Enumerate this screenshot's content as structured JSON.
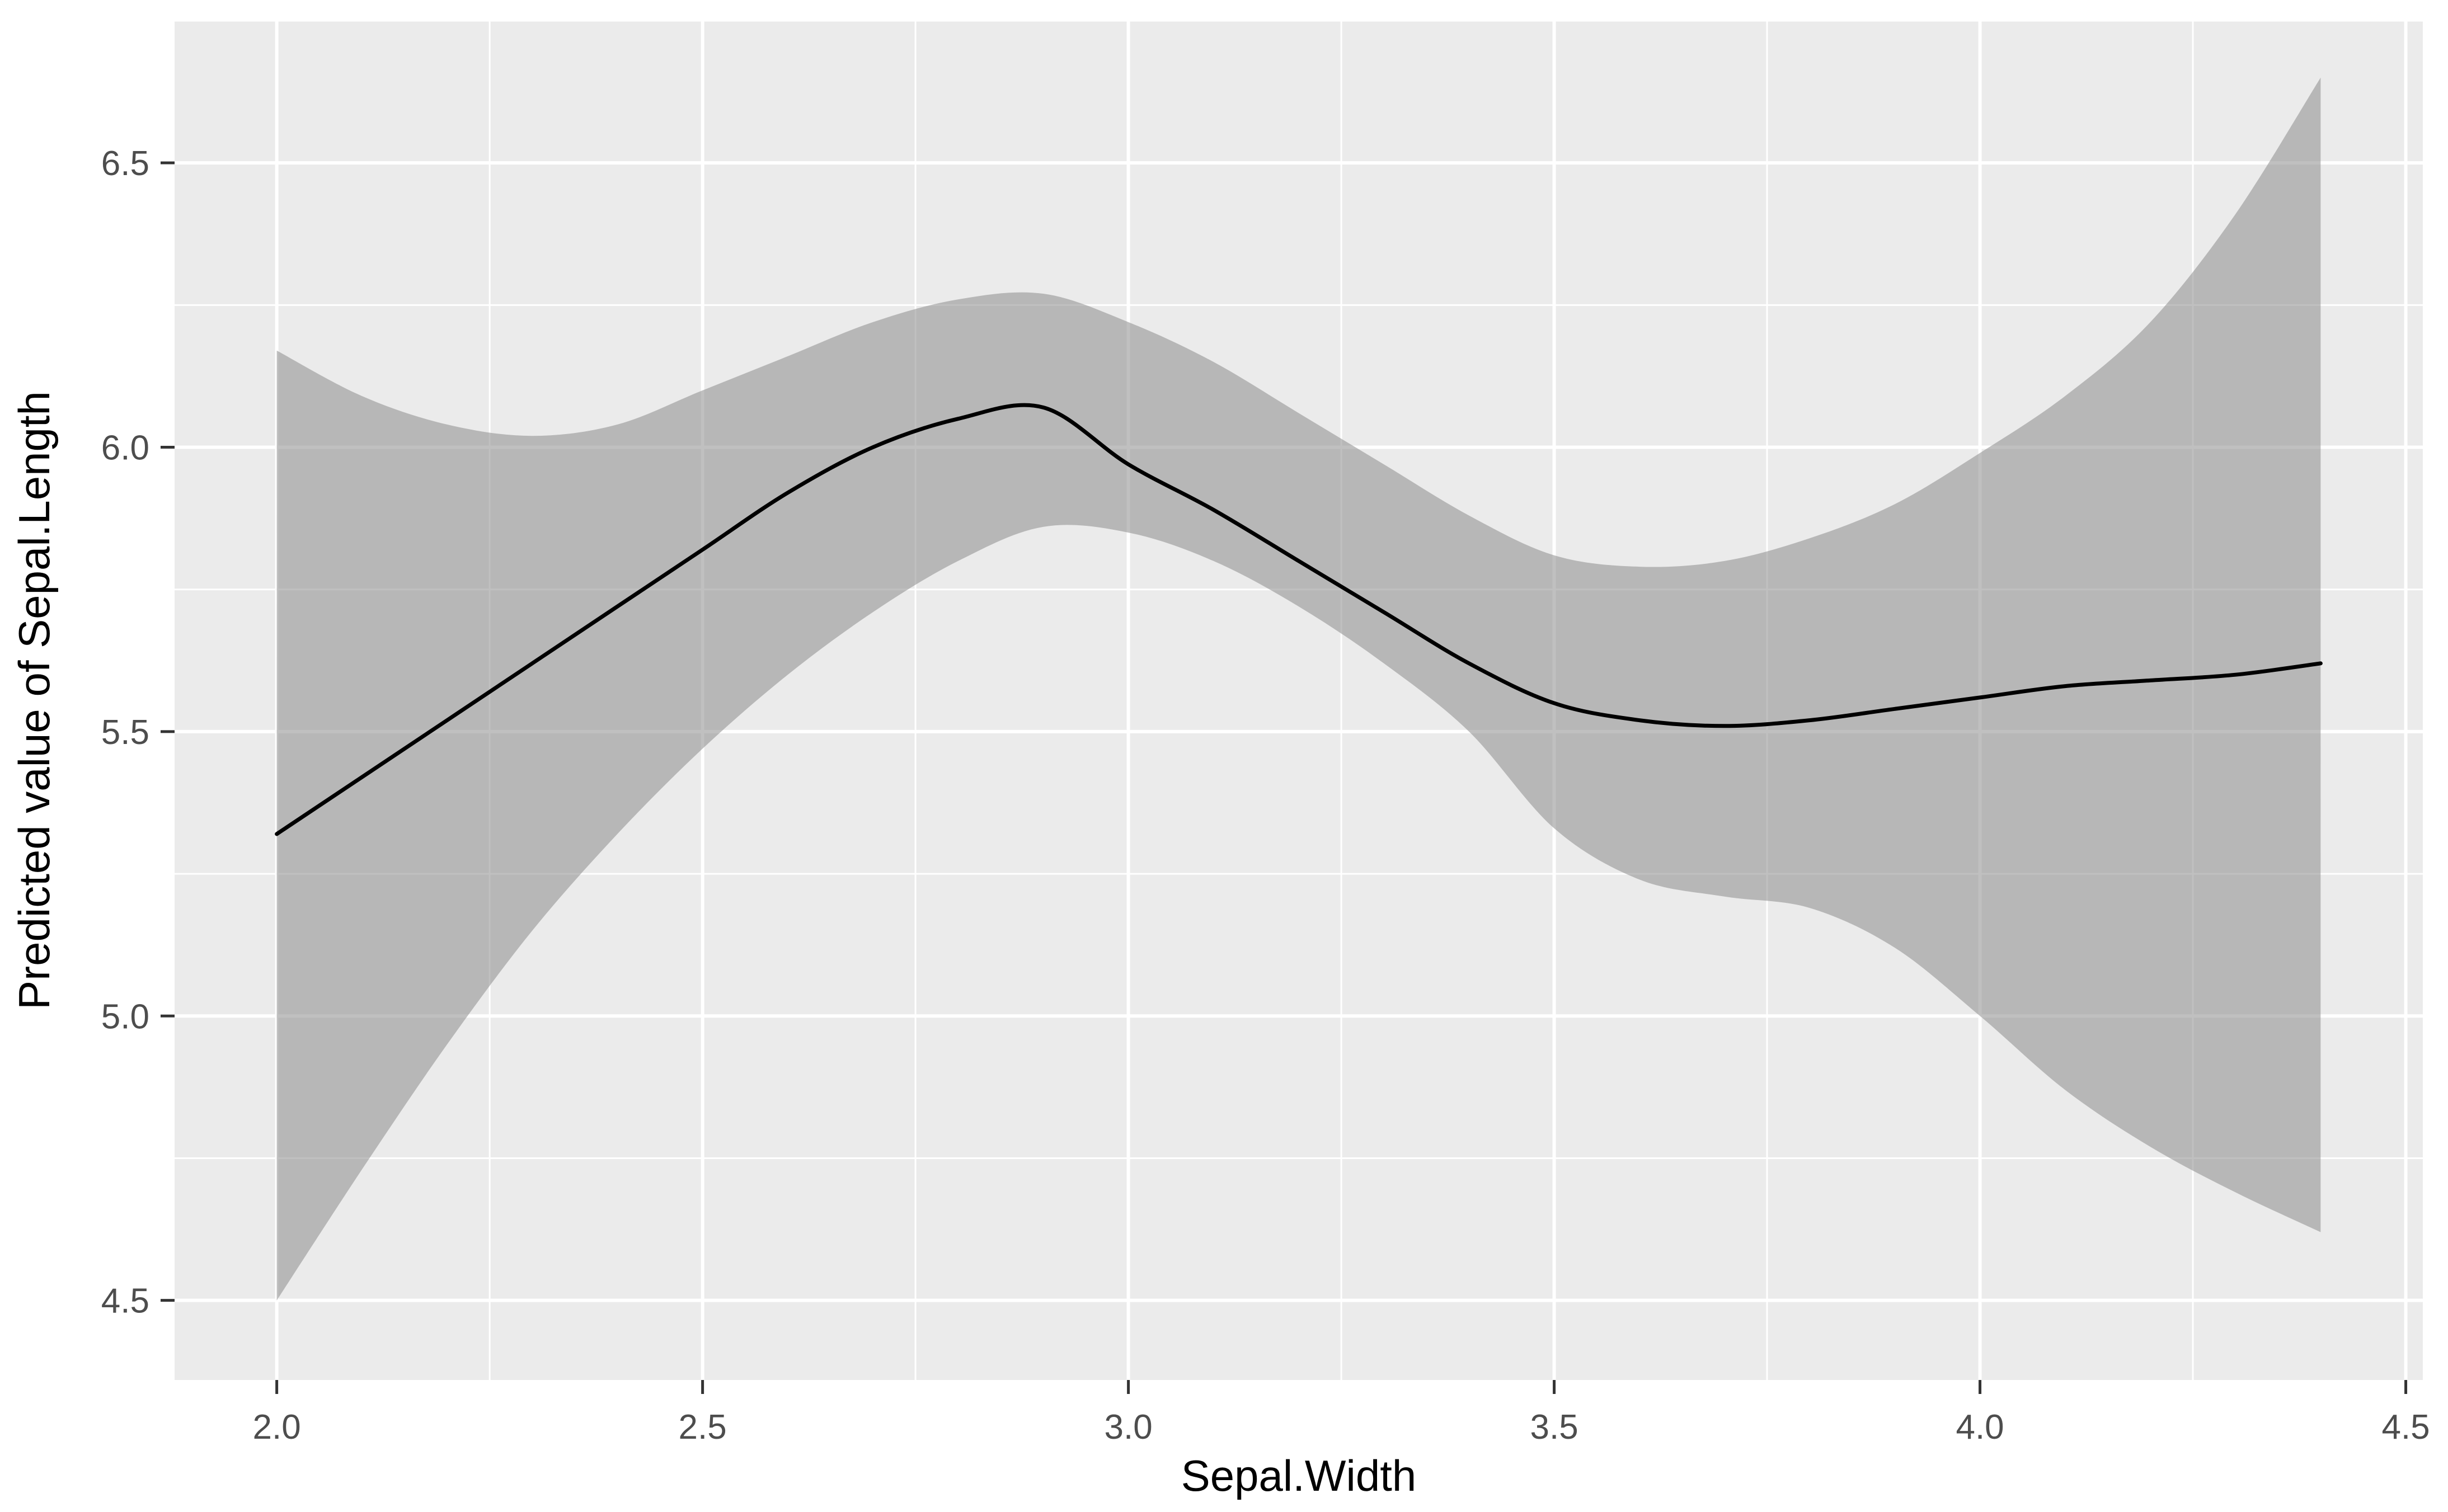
{
  "figure": {
    "type": "ggplot2-smooth-plot",
    "title": "",
    "xlabel": "Sepal.Width",
    "ylabel": "Predicted value of Sepal.Length"
  },
  "colors": {
    "panel_background": "#EBEBEB",
    "grid_major": "#FFFFFF",
    "grid_minor": "#FFFFFF",
    "ribbon_fill": "rgba(140,140,140,0.55)",
    "line_color": "#000000",
    "tick_mark_color": "#333333",
    "tick_label_color": "#4D4D4D",
    "axis_title_color": "#000000",
    "outer_background": "#FFFFFF"
  },
  "chart_data": {
    "type": "line",
    "subtype": "smooth-with-confidence-ribbon",
    "title": "",
    "xlabel": "Sepal.Width",
    "ylabel": "Predicted value of Sepal.Length",
    "xlim": [
      1.88,
      4.52
    ],
    "ylim": [
      4.36,
      6.75
    ],
    "x_ticks": [
      2.0,
      2.5,
      3.0,
      3.5,
      4.0,
      4.5
    ],
    "x_tick_labels": [
      "2.0",
      "2.5",
      "3.0",
      "3.5",
      "4.0",
      "4.5"
    ],
    "y_ticks": [
      4.5,
      5.0,
      5.5,
      6.0,
      6.5
    ],
    "y_tick_labels": [
      "4.5",
      "5.0",
      "5.5",
      "6.0",
      "6.5"
    ],
    "minor_grid_step": 0.25,
    "grid": true,
    "legend": false,
    "x": [
      2.0,
      2.1,
      2.2,
      2.3,
      2.4,
      2.5,
      2.6,
      2.7,
      2.8,
      2.9,
      3.0,
      3.1,
      3.2,
      3.3,
      3.4,
      3.5,
      3.6,
      3.7,
      3.8,
      3.9,
      4.0,
      4.1,
      4.2,
      4.3,
      4.4
    ],
    "series": [
      {
        "name": "fitted_line",
        "values": [
          5.32,
          5.42,
          5.52,
          5.62,
          5.72,
          5.82,
          5.92,
          6.0,
          6.05,
          6.07,
          5.97,
          5.89,
          5.8,
          5.71,
          5.62,
          5.55,
          5.52,
          5.51,
          5.52,
          5.54,
          5.56,
          5.58,
          5.59,
          5.6,
          5.62
        ]
      },
      {
        "name": "ci_upper",
        "values": [
          6.17,
          6.09,
          6.04,
          6.02,
          6.04,
          6.1,
          6.16,
          6.22,
          6.26,
          6.27,
          6.22,
          6.15,
          6.06,
          5.97,
          5.88,
          5.81,
          5.79,
          5.8,
          5.84,
          5.9,
          5.99,
          6.09,
          6.22,
          6.41,
          6.65
        ]
      },
      {
        "name": "ci_lower",
        "values": [
          4.5,
          4.73,
          4.95,
          5.15,
          5.32,
          5.47,
          5.6,
          5.71,
          5.8,
          5.86,
          5.85,
          5.8,
          5.72,
          5.62,
          5.5,
          5.33,
          5.24,
          5.21,
          5.19,
          5.12,
          5.0,
          4.87,
          4.77,
          4.69,
          4.62
        ]
      }
    ]
  }
}
